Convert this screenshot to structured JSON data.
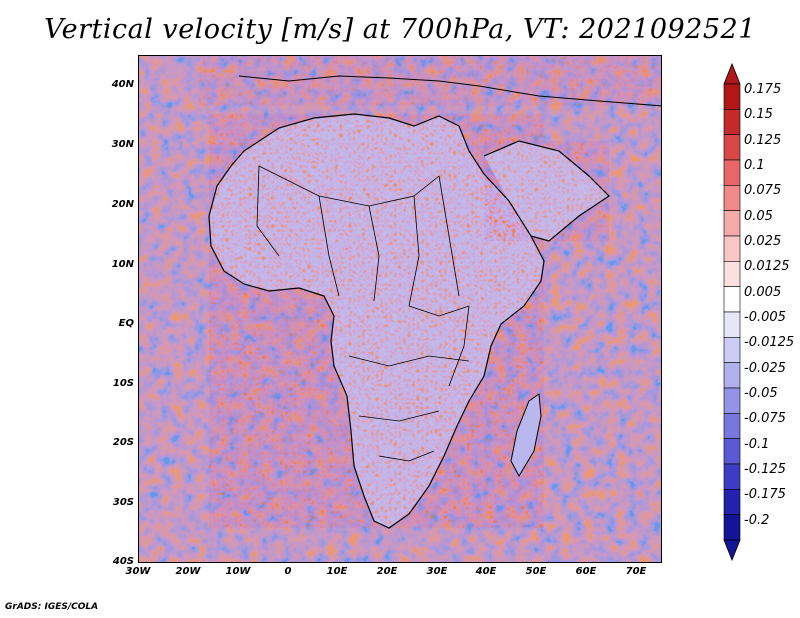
{
  "title": "Vertical velocity [m/s] at 700hPa, VT: 2021092521",
  "footer": "GrADS: IGES/COLA",
  "y_ticks": [
    "40N",
    "30N",
    "20N",
    "10N",
    "EQ",
    "10S",
    "20S",
    "30S",
    "40S"
  ],
  "x_ticks": [
    "30W",
    "20W",
    "10W",
    "0",
    "10E",
    "20E",
    "30E",
    "40E",
    "50E",
    "60E",
    "70E"
  ],
  "colorbar": {
    "labels": [
      "0.175",
      "0.15",
      "0.125",
      "0.1",
      "0.075",
      "0.05",
      "0.025",
      "0.0125",
      "0.005",
      "-0.005",
      "-0.0125",
      "-0.025",
      "-0.05",
      "-0.075",
      "-0.1",
      "-0.125",
      "-0.175",
      "-0.2"
    ],
    "colors": [
      "#b01818",
      "#c42a2a",
      "#d84848",
      "#e86868",
      "#f08a8a",
      "#f5aaaa",
      "#f9c6c6",
      "#fce0e0",
      "#ffffff",
      "#e6e6fa",
      "#ccccf4",
      "#b0b0ee",
      "#9494e6",
      "#7878dc",
      "#5a5ad2",
      "#3c3cc4",
      "#2222ae",
      "#141496"
    ]
  }
}
